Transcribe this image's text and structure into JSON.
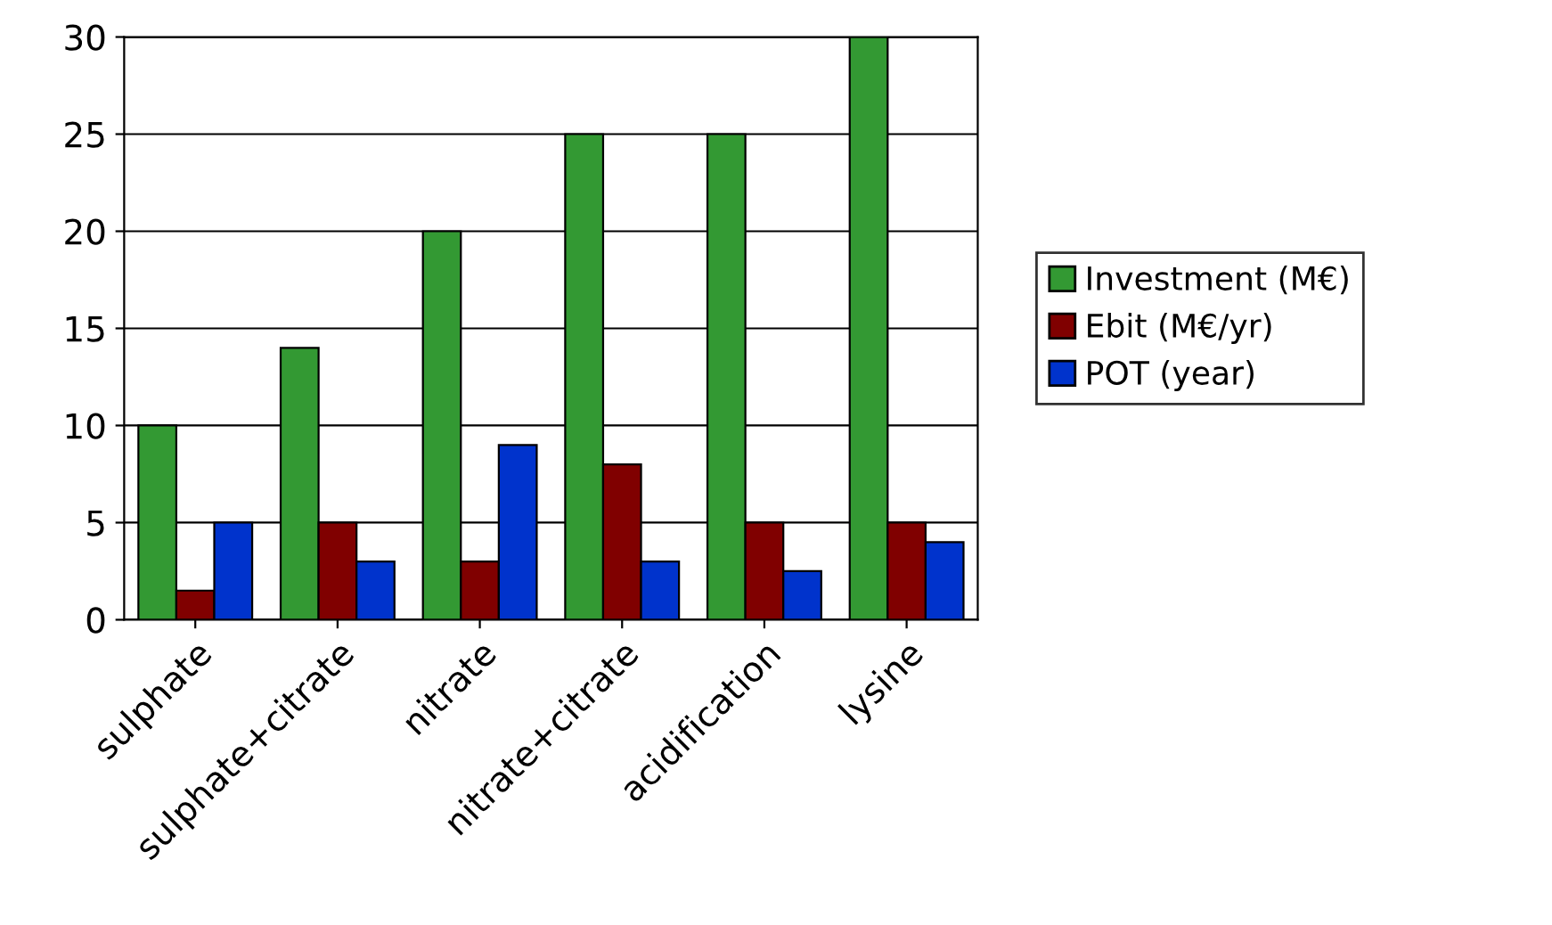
{
  "chart_data": {
    "type": "bar",
    "categories": [
      "sulphate",
      "sulphate+citrate",
      "nitrate",
      "nitrate+citrate",
      "acidification",
      "lysine"
    ],
    "series": [
      {
        "name": "Investment (M€)",
        "color": "#339933",
        "values": [
          10,
          14,
          20,
          25,
          25,
          30
        ]
      },
      {
        "name": "Ebit (M€/yr)",
        "color": "#800000",
        "values": [
          1.5,
          5,
          3,
          8,
          5,
          5
        ]
      },
      {
        "name": "POT (year)",
        "color": "#0033cc",
        "values": [
          5,
          3,
          9,
          3,
          2.5,
          4
        ]
      }
    ],
    "ylim": [
      0,
      30
    ],
    "yticks": [
      0,
      5,
      10,
      15,
      20,
      25,
      30
    ],
    "grid": "y",
    "legend": "right"
  }
}
